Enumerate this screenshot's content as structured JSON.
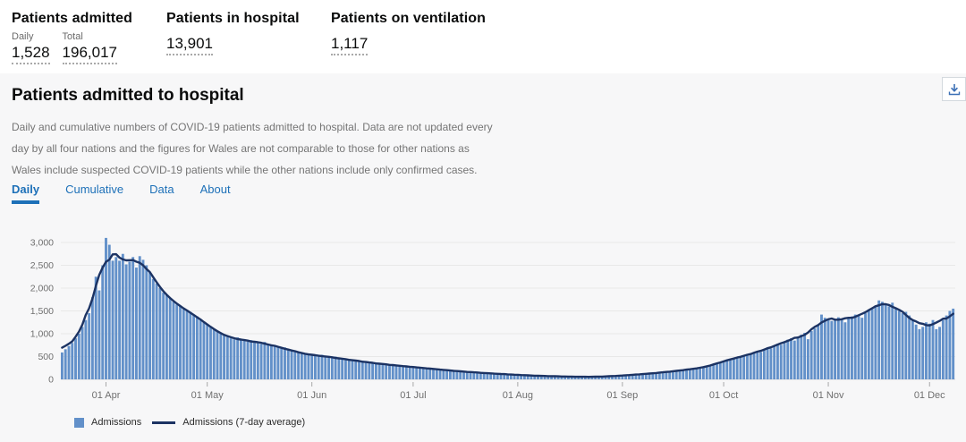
{
  "colors": {
    "accent_blue": "#1d70b8",
    "bar_blue": "#6290c9",
    "line_navy": "#1c3363",
    "panel_bg": "#f7f7f8",
    "secondary_text": "#757575"
  },
  "summary": {
    "admitted": {
      "title": "Patients admitted",
      "metrics": [
        {
          "label": "Daily",
          "value": "1,528"
        },
        {
          "label": "Total",
          "value": "196,017"
        }
      ]
    },
    "in_hospital": {
      "title": "Patients in hospital",
      "value": "13,901"
    },
    "ventilation": {
      "title": "Patients on ventilation",
      "value": "1,117"
    }
  },
  "panel": {
    "title": "Patients admitted to hospital",
    "description": "Daily and cumulative numbers of COVID-19 patients admitted to hospital. Data are not updated every day by all four nations and the figures for Wales are not comparable to those for other nations as Wales include suspected COVID-19 patients while the other nations include only confirmed cases.",
    "download_icon": "download-icon",
    "tabs": [
      {
        "label": "Daily",
        "active": true
      },
      {
        "label": "Cumulative",
        "active": false
      },
      {
        "label": "Data",
        "active": false
      },
      {
        "label": "About",
        "active": false
      }
    ]
  },
  "chart_data": {
    "type": "bar",
    "title": "Patients admitted to hospital (Daily)",
    "xlabel": "",
    "ylabel": "",
    "ylim": [
      0,
      3000
    ],
    "grid": true,
    "legend_position": "bottom",
    "y_tick_values": [
      0,
      500,
      1000,
      1500,
      2000,
      2500,
      3000
    ],
    "y_tick_labels": [
      "0",
      "500",
      "1,000",
      "1,500",
      "2,000",
      "2,500",
      "3,000"
    ],
    "x_tick_labels": [
      "01 Apr",
      "01 May",
      "01 Jun",
      "01 Jul",
      "01 Aug",
      "01 Sep",
      "01 Oct",
      "01 Nov",
      "01 Dec"
    ],
    "x_tick_indices": [
      13,
      43,
      74,
      104,
      135,
      166,
      196,
      227,
      257
    ],
    "series": [
      {
        "name": "Admissions",
        "type": "bar",
        "color": "#6290c9",
        "values": [
          590,
          660,
          730,
          800,
          900,
          1000,
          1150,
          1300,
          1450,
          1800,
          2250,
          1950,
          2500,
          3100,
          2950,
          2600,
          2680,
          2600,
          2750,
          2520,
          2580,
          2680,
          2450,
          2700,
          2620,
          2500,
          2350,
          2200,
          2100,
          2000,
          1900,
          1850,
          1780,
          1700,
          1640,
          1600,
          1550,
          1500,
          1480,
          1420,
          1380,
          1300,
          1250,
          1200,
          1150,
          1100,
          1050,
          1000,
          960,
          930,
          900,
          880,
          920,
          870,
          850,
          830,
          860,
          820,
          800,
          780,
          820,
          780,
          750,
          720,
          700,
          680,
          700,
          660,
          630,
          610,
          590,
          570,
          560,
          545,
          530,
          520,
          510,
          540,
          500,
          480,
          470,
          500,
          460,
          440,
          430,
          450,
          420,
          400,
          390,
          410,
          380,
          360,
          350,
          370,
          340,
          330,
          320,
          335,
          310,
          300,
          290,
          305,
          280,
          270,
          280,
          260,
          250,
          245,
          255,
          235,
          225,
          215,
          225,
          205,
          195,
          190,
          200,
          180,
          170,
          165,
          175,
          160,
          150,
          145,
          155,
          140,
          130,
          125,
          135,
          120,
          115,
          110,
          120,
          105,
          100,
          95,
          100,
          90,
          85,
          80,
          90,
          78,
          72,
          70,
          80,
          68,
          65,
          62,
          72,
          60,
          58,
          56,
          66,
          55,
          54,
          52,
          62,
          52,
          55,
          58,
          68,
          60,
          65,
          70,
          80,
          75,
          85,
          90,
          100,
          95,
          105,
          110,
          120,
          115,
          125,
          135,
          145,
          140,
          155,
          165,
          175,
          170,
          185,
          195,
          210,
          200,
          220,
          235,
          250,
          240,
          260,
          280,
          300,
          320,
          350,
          380,
          400,
          430,
          420,
          460,
          490,
          480,
          520,
          550,
          540,
          580,
          620,
          600,
          660,
          700,
          680,
          730,
          780,
          760,
          820,
          870,
          900,
          850,
          930,
          980,
          1020,
          880,
          1060,
          1120,
          1200,
          1420,
          1350,
          1300,
          1280,
          1320,
          1360,
          1300,
          1250,
          1340,
          1380,
          1420,
          1400,
          1350,
          1450,
          1500,
          1560,
          1620,
          1730,
          1700,
          1650,
          1600,
          1680,
          1550,
          1500,
          1450,
          1480,
          1400,
          1300,
          1200,
          1100,
          1150,
          1250,
          1220,
          1300,
          1100,
          1150,
          1300,
          1400,
          1500,
          1550
        ]
      },
      {
        "name": "Admissions (7-day average)",
        "type": "line",
        "color": "#1c3363",
        "derived_from": "7-day centered moving average of Admissions"
      }
    ]
  },
  "legend": [
    {
      "label": "Admissions",
      "swatch": "square",
      "color": "#6290c9"
    },
    {
      "label": "Admissions (7-day average)",
      "swatch": "line",
      "color": "#1c3363"
    }
  ]
}
